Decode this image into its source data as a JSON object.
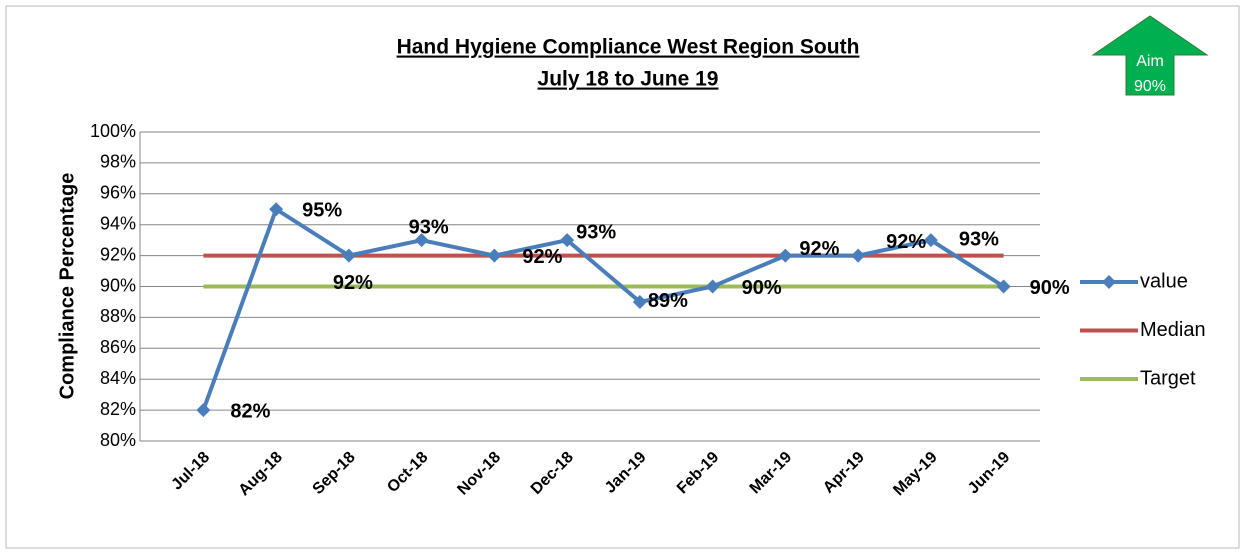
{
  "chart_data": {
    "type": "line",
    "title": [
      "Hand Hygiene Compliance West Region South",
      "July 18 to June 19"
    ],
    "ylabel": "Compliance Percentage",
    "annotation": [
      "Aim",
      "90%"
    ],
    "categories": [
      "Jul-18",
      "Aug-18",
      "Sep-18",
      "Oct-18",
      "Nov-18",
      "Dec-18",
      "Jan-19",
      "Feb-19",
      "Mar-19",
      "Apr-19",
      "May-19",
      "Jun-19"
    ],
    "series": [
      {
        "name": "value",
        "color": "#4a7ebb",
        "marker": "diamond",
        "values": [
          82,
          95,
          92,
          93,
          92,
          93,
          89,
          90,
          92,
          92,
          93,
          90
        ],
        "value_labels": [
          "82%",
          "95%",
          "92%",
          "93%",
          "92%",
          "93%",
          "89%",
          "90%",
          "92%",
          "92%",
          "93%",
          "90%"
        ]
      },
      {
        "name": "Median",
        "color": "#c0504d",
        "values": [
          92,
          92,
          92,
          92,
          92,
          92,
          92,
          92,
          92,
          92,
          92,
          92
        ]
      },
      {
        "name": "Target",
        "color": "#9bbb59",
        "values": [
          90,
          90,
          90,
          90,
          90,
          90,
          90,
          90,
          90,
          90,
          90,
          90
        ]
      }
    ],
    "ylim": [
      80,
      100
    ],
    "yticks": [
      {
        "value": 80,
        "label": "80%"
      },
      {
        "value": 82,
        "label": "82%"
      },
      {
        "value": 84,
        "label": "84%"
      },
      {
        "value": 86,
        "label": "86%"
      },
      {
        "value": 88,
        "label": "88%"
      },
      {
        "value": 90,
        "label": "90%"
      },
      {
        "value": 92,
        "label": "92%"
      },
      {
        "value": 94,
        "label": "94%"
      },
      {
        "value": 96,
        "label": "96%"
      },
      {
        "value": 98,
        "label": "98%"
      },
      {
        "value": 100,
        "label": "100%"
      }
    ],
    "grid": true,
    "legend": "right"
  }
}
